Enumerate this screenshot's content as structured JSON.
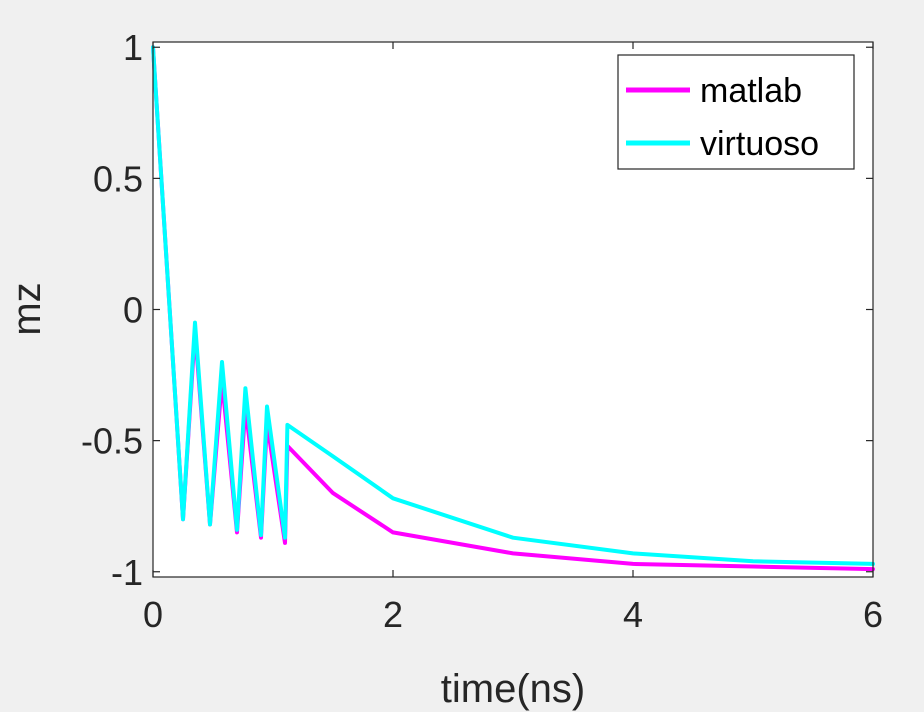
{
  "chart_data": {
    "type": "line",
    "title": "",
    "xlabel": "time(ns)",
    "ylabel": "mz",
    "xlim": [
      0,
      6
    ],
    "ylim": [
      -1.02,
      1.02
    ],
    "x_ticks": [
      0,
      2,
      4,
      6
    ],
    "x_tick_labels": [
      "0",
      "2",
      "4",
      "6"
    ],
    "y_ticks": [
      -1,
      -0.5,
      0,
      0.5,
      1
    ],
    "y_tick_labels": [
      "-1",
      "-0.5",
      "0",
      "0.5",
      "1"
    ],
    "grid": false,
    "legend_position": "top-right",
    "x": [
      0,
      0.25,
      0.35,
      0.475,
      0.575,
      0.7,
      0.77,
      0.9,
      0.95,
      1.1,
      1.12,
      1.5,
      2,
      3,
      4,
      5,
      6
    ],
    "series": [
      {
        "name": "matlab",
        "color": "#ff00ff",
        "values": [
          1,
          -0.8,
          -0.08,
          -0.82,
          -0.27,
          -0.85,
          -0.37,
          -0.87,
          -0.43,
          -0.89,
          -0.52,
          -0.7,
          -0.85,
          -0.93,
          -0.97,
          -0.98,
          -0.99
        ]
      },
      {
        "name": "virtuoso",
        "color": "#00ffff",
        "values": [
          1,
          -0.8,
          -0.05,
          -0.82,
          -0.2,
          -0.84,
          -0.3,
          -0.86,
          -0.37,
          -0.87,
          -0.44,
          -0.56,
          -0.72,
          -0.87,
          -0.93,
          -0.96,
          -0.97
        ]
      }
    ]
  }
}
